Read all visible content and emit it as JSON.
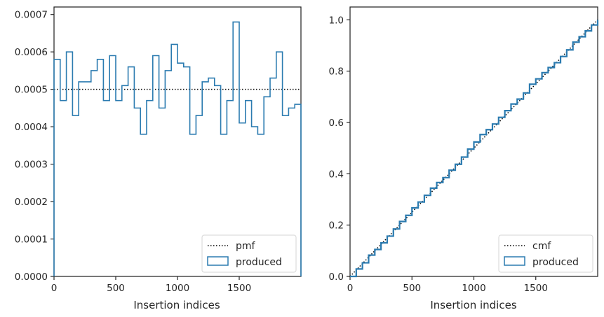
{
  "chart_data": [
    {
      "type": "step",
      "xlabel": "Insertion indices",
      "ylabel": "",
      "xlim": [
        0,
        2000
      ],
      "ylim": [
        0,
        0.00072
      ],
      "xticks": [
        0,
        500,
        1000,
        1500
      ],
      "xtick_labels": [
        "0",
        "500",
        "1000",
        "1500"
      ],
      "yticks": [
        0,
        0.0001,
        0.0002,
        0.0003,
        0.0004,
        0.0005,
        0.0006,
        0.0007
      ],
      "ytick_labels": [
        "0.0000",
        "0.0001",
        "0.0002",
        "0.0003",
        "0.0004",
        "0.0005",
        "0.0006",
        "0.0007"
      ],
      "bin_width": 50,
      "reference": {
        "name": "pmf",
        "value": 0.0005,
        "style": "dotted",
        "color": "#000000"
      },
      "series": [
        {
          "name": "produced",
          "color": "#2b7bb0",
          "x_edges": [
            0,
            50,
            100,
            150,
            200,
            250,
            300,
            350,
            400,
            450,
            500,
            550,
            600,
            650,
            700,
            750,
            800,
            850,
            900,
            950,
            1000,
            1050,
            1100,
            1150,
            1200,
            1250,
            1300,
            1350,
            1400,
            1450,
            1500,
            1550,
            1600,
            1650,
            1700,
            1750,
            1800,
            1850,
            1900,
            1950,
            2000
          ],
          "values": [
            0.00058,
            0.00047,
            0.0006,
            0.00043,
            0.00052,
            0.00052,
            0.00055,
            0.00058,
            0.00047,
            0.00059,
            0.00047,
            0.00051,
            0.00056,
            0.00045,
            0.00038,
            0.00047,
            0.00059,
            0.00045,
            0.00055,
            0.00062,
            0.00057,
            0.00056,
            0.00038,
            0.00043,
            0.00052,
            0.00053,
            0.00051,
            0.00038,
            0.00047,
            0.00068,
            0.00041,
            0.00047,
            0.0004,
            0.00038,
            0.00048,
            0.00053,
            0.0006,
            0.00043,
            0.00045,
            0.00046
          ]
        }
      ],
      "legend": {
        "position": "lower-right",
        "entries": [
          "pmf",
          "produced"
        ]
      },
      "grid": false
    },
    {
      "type": "step",
      "xlabel": "Insertion indices",
      "ylabel": "",
      "xlim": [
        0,
        2000
      ],
      "ylim": [
        0,
        1.05
      ],
      "xticks": [
        0,
        500,
        1000,
        1500
      ],
      "xtick_labels": [
        "0",
        "500",
        "1000",
        "1500"
      ],
      "yticks": [
        0.0,
        0.2,
        0.4,
        0.6,
        0.8,
        1.0
      ],
      "ytick_labels": [
        "0.0",
        "0.2",
        "0.4",
        "0.6",
        "0.8",
        "1.0"
      ],
      "reference": {
        "name": "cmf",
        "points": [
          [
            0,
            0
          ],
          [
            2000,
            1.0
          ]
        ],
        "style": "dotted",
        "color": "#000000"
      },
      "series": [
        {
          "name": "produced",
          "color": "#2b7bb0",
          "x": [
            0,
            50,
            100,
            150,
            200,
            250,
            300,
            350,
            400,
            450,
            500,
            550,
            600,
            650,
            700,
            750,
            800,
            850,
            900,
            950,
            1000,
            1050,
            1100,
            1150,
            1200,
            1250,
            1300,
            1350,
            1400,
            1450,
            1500,
            1550,
            1600,
            1650,
            1700,
            1750,
            1800,
            1850,
            1900,
            1950,
            2000
          ],
          "y": [
            0.0,
            0.029,
            0.053,
            0.083,
            0.105,
            0.131,
            0.157,
            0.185,
            0.214,
            0.238,
            0.267,
            0.29,
            0.316,
            0.344,
            0.366,
            0.385,
            0.414,
            0.437,
            0.465,
            0.496,
            0.524,
            0.553,
            0.572,
            0.594,
            0.62,
            0.646,
            0.672,
            0.691,
            0.715,
            0.749,
            0.77,
            0.794,
            0.814,
            0.833,
            0.857,
            0.883,
            0.913,
            0.934,
            0.957,
            0.98,
            1.0
          ]
        }
      ],
      "legend": {
        "position": "lower-right",
        "entries": [
          "cmf",
          "produced"
        ]
      },
      "grid": false
    }
  ]
}
